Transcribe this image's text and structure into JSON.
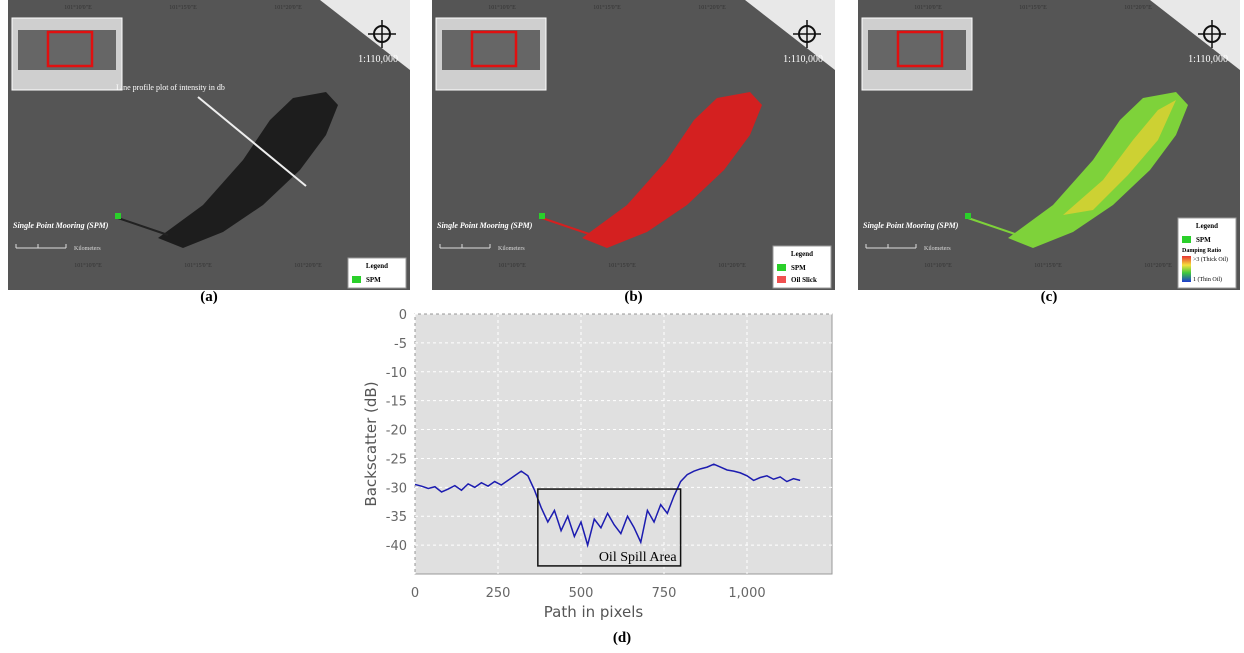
{
  "panels": [
    {
      "label": "(a)",
      "scale": "1:110,000",
      "spm_label": "Single Point Mooring (SPM)",
      "annotation": "Line profile plot of intensity in db",
      "legend_title": "Legend",
      "legend_items": [
        "SPM"
      ],
      "scalebar": "Kilometers",
      "lon_labels": [
        "101°10'0\"E",
        "101°15'0\"E",
        "101°20'0\"E"
      ]
    },
    {
      "label": "(b)",
      "scale": "1:110,000",
      "spm_label": "Single Point Mooring (SPM)",
      "legend_title": "Legend",
      "legend_items": [
        "SPM",
        "Oil Slick"
      ],
      "scalebar": "Kilometers",
      "lon_labels": [
        "101°10'0\"E",
        "101°15'0\"E",
        "101°20'0\"E"
      ]
    },
    {
      "label": "(c)",
      "scale": "1:110,000",
      "spm_label": "Single Point Mooring (SPM)",
      "legend_title": "Legend",
      "legend_items": [
        "SPM"
      ],
      "ramp_title": "Damping Ratio",
      "ramp_labels": [
        ">3 (Thick Oil)",
        "1 (Thin Oil)"
      ],
      "scalebar": "Kilometers",
      "lon_labels": [
        "101°10'0\"E",
        "101°15'0\"E",
        "101°20'0\"E"
      ]
    }
  ],
  "chart_data": {
    "type": "line",
    "label": "(d)",
    "xlabel": "Path in pixels",
    "ylabel": "Backscatter (dB)",
    "color": "#1c1cb0",
    "grid": true,
    "xlim": [
      0,
      1256
    ],
    "ylim": [
      -45,
      0
    ],
    "xticks": [
      0,
      250,
      500,
      750,
      {
        "value": 1000,
        "label": "1,000"
      }
    ],
    "yticks": [
      0,
      -5,
      -10,
      -15,
      -20,
      -25,
      -30,
      -35,
      -40
    ],
    "x": [
      0,
      20,
      40,
      60,
      80,
      100,
      120,
      140,
      160,
      180,
      200,
      220,
      240,
      260,
      280,
      300,
      320,
      340,
      360,
      380,
      400,
      420,
      440,
      460,
      480,
      500,
      520,
      540,
      560,
      580,
      600,
      620,
      640,
      660,
      680,
      700,
      720,
      740,
      760,
      780,
      800,
      820,
      840,
      860,
      880,
      900,
      920,
      940,
      960,
      980,
      1000,
      1020,
      1040,
      1060,
      1080,
      1100,
      1120,
      1140,
      1160
    ],
    "values": [
      -29.5,
      -29.8,
      -30.2,
      -29.9,
      -30.8,
      -30.3,
      -29.7,
      -30.5,
      -29.4,
      -30.0,
      -29.2,
      -29.8,
      -29.0,
      -29.6,
      -28.8,
      -28.0,
      -27.2,
      -28.0,
      -30.5,
      -33.5,
      -36.0,
      -34.0,
      -37.5,
      -35.0,
      -38.5,
      -36.0,
      -40.0,
      -35.5,
      -37.0,
      -34.5,
      -36.5,
      -38.0,
      -35.0,
      -37.0,
      -39.5,
      -34.0,
      -36.0,
      -33.0,
      -34.5,
      -31.5,
      -29.0,
      -27.8,
      -27.2,
      -26.8,
      -26.5,
      -26.0,
      -26.5,
      -27.0,
      -27.2,
      -27.5,
      -28.0,
      -28.8,
      -28.3,
      -28.0,
      -28.6,
      -28.2,
      -29.0,
      -28.5,
      -28.8
    ],
    "annotation": {
      "text": "Oil Spill Area",
      "x": [
        370,
        800
      ],
      "y": [
        -43.6,
        -30.3
      ]
    }
  }
}
